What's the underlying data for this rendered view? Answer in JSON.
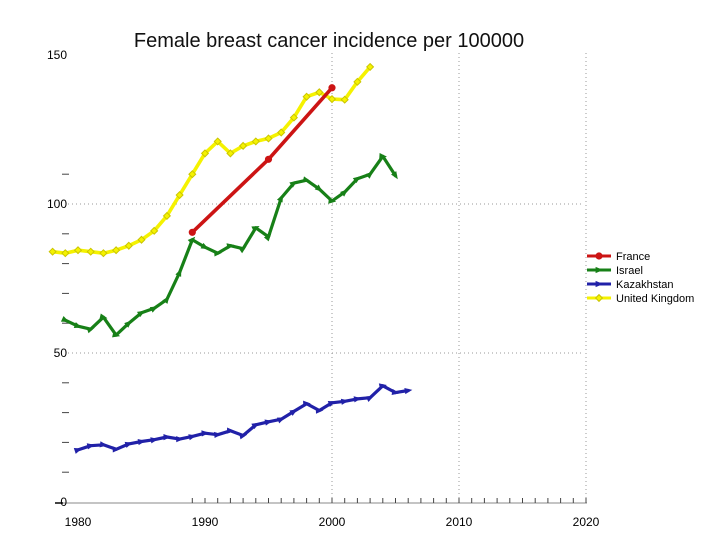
{
  "page": {
    "background": "#ffffff"
  },
  "chart_data": {
    "type": "line",
    "title": "Female breast cancer incidence per 100000",
    "xlabel": "",
    "ylabel": "",
    "x_axis": {
      "range": [
        1978.4,
        2020.2
      ],
      "major_ticks": [
        1980,
        1990,
        2000,
        2010,
        2020
      ],
      "minor_tick_start": 1989,
      "minor_tick_end": 2020,
      "grid_years": [
        2000,
        2010,
        2020
      ]
    },
    "y_axis": {
      "range": [
        0,
        150
      ],
      "major_ticks": [
        0,
        50,
        100,
        150
      ],
      "minor_ticks": [
        10,
        20,
        30,
        40,
        60,
        70,
        80,
        90,
        110
      ],
      "grid_values": [
        50,
        100
      ]
    },
    "grid_on": true,
    "axis_color": "#888888",
    "tick_color": "#444444",
    "grid_color": "#999999",
    "legend_position": "right-middle",
    "legend_entries": [
      "France",
      "Israel",
      "Kazakhstan",
      "United Kingdom"
    ],
    "series": [
      {
        "name": "France",
        "color": "#cc1414",
        "marker": "circle",
        "line_width": 3.6,
        "points": [
          [
            1989,
            90.5
          ],
          [
            1995,
            115
          ],
          [
            2000,
            139
          ]
        ]
      },
      {
        "name": "Israel",
        "color": "#178017",
        "marker": "triangle",
        "line_width": 3.2,
        "points": [
          [
            1979,
            61
          ],
          [
            1980,
            59
          ],
          [
            1981,
            58
          ],
          [
            1982,
            62
          ],
          [
            1983,
            56
          ],
          [
            1984,
            60
          ],
          [
            1985,
            63.5
          ],
          [
            1986,
            65
          ],
          [
            1987,
            68
          ],
          [
            1988,
            77
          ],
          [
            1989,
            88
          ],
          [
            1990,
            85.5
          ],
          [
            1991,
            83.5
          ],
          [
            1992,
            86
          ],
          [
            1993,
            85
          ],
          [
            1994,
            92
          ],
          [
            1995,
            89
          ],
          [
            1996,
            102
          ],
          [
            1997,
            107
          ],
          [
            1998,
            108
          ],
          [
            1999,
            105
          ],
          [
            2000,
            101
          ],
          [
            2001,
            104
          ],
          [
            2002,
            108.5
          ],
          [
            2003,
            110
          ],
          [
            2004,
            116
          ],
          [
            2005,
            109.5
          ]
        ]
      },
      {
        "name": "Kazakhstan",
        "color": "#2121a8",
        "marker": "triangle",
        "line_width": 3.2,
        "points": [
          [
            1980,
            17.5
          ],
          [
            1981,
            18.9
          ],
          [
            1982,
            19.2
          ],
          [
            1983,
            17.7
          ],
          [
            1984,
            19.5
          ],
          [
            1985,
            20.3
          ],
          [
            1986,
            20.9
          ],
          [
            1987,
            21.8
          ],
          [
            1988,
            21.1
          ],
          [
            1989,
            22
          ],
          [
            1990,
            23.1
          ],
          [
            1991,
            22.6
          ],
          [
            1992,
            23.9
          ],
          [
            1993,
            22.3
          ],
          [
            1994,
            25.9
          ],
          [
            1995,
            26.9
          ],
          [
            1996,
            27.8
          ],
          [
            1997,
            30.4
          ],
          [
            1998,
            33
          ],
          [
            1999,
            30.7
          ],
          [
            2000,
            33.3
          ],
          [
            2001,
            33.8
          ],
          [
            2002,
            34.6
          ],
          [
            2003,
            35
          ],
          [
            2004,
            39
          ],
          [
            2005,
            36.7
          ],
          [
            2006,
            37.4
          ]
        ]
      },
      {
        "name": "United Kingdom",
        "color": "#f5f200",
        "marker": "diamond",
        "marker_stroke": "#c9c400",
        "line_width": 3.6,
        "points": [
          [
            1978,
            84
          ],
          [
            1979,
            83.5
          ],
          [
            1980,
            84.5
          ],
          [
            1981,
            84
          ],
          [
            1982,
            83.5
          ],
          [
            1983,
            84.5
          ],
          [
            1984,
            86
          ],
          [
            1985,
            88
          ],
          [
            1986,
            91
          ],
          [
            1987,
            96
          ],
          [
            1988,
            103
          ],
          [
            1989,
            110
          ],
          [
            1990,
            117
          ],
          [
            1991,
            121
          ],
          [
            1992,
            117
          ],
          [
            1993,
            119.5
          ],
          [
            1994,
            121
          ],
          [
            1995,
            122
          ],
          [
            1996,
            124
          ],
          [
            1997,
            129
          ],
          [
            1998,
            136
          ],
          [
            1999,
            137.5
          ],
          [
            2000,
            135.2
          ],
          [
            2001,
            135
          ],
          [
            2002,
            141
          ],
          [
            2003,
            146
          ]
        ]
      }
    ]
  }
}
